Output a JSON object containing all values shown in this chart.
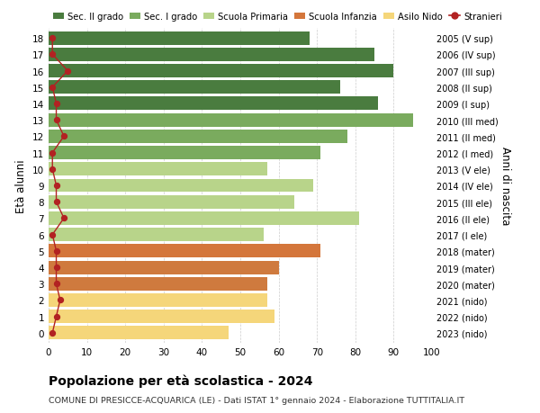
{
  "ages": [
    18,
    17,
    16,
    15,
    14,
    13,
    12,
    11,
    10,
    9,
    8,
    7,
    6,
    5,
    4,
    3,
    2,
    1,
    0
  ],
  "right_labels": [
    "2005 (V sup)",
    "2006 (IV sup)",
    "2007 (III sup)",
    "2008 (II sup)",
    "2009 (I sup)",
    "2010 (III med)",
    "2011 (II med)",
    "2012 (I med)",
    "2013 (V ele)",
    "2014 (IV ele)",
    "2015 (III ele)",
    "2016 (II ele)",
    "2017 (I ele)",
    "2018 (mater)",
    "2019 (mater)",
    "2020 (mater)",
    "2021 (nido)",
    "2022 (nido)",
    "2023 (nido)"
  ],
  "bar_values": [
    68,
    85,
    90,
    76,
    86,
    95,
    78,
    71,
    57,
    69,
    64,
    81,
    56,
    71,
    60,
    57,
    57,
    59,
    47
  ],
  "bar_colors": [
    "#4a7c3f",
    "#4a7c3f",
    "#4a7c3f",
    "#4a7c3f",
    "#4a7c3f",
    "#7aab5e",
    "#7aab5e",
    "#7aab5e",
    "#b8d48a",
    "#b8d48a",
    "#b8d48a",
    "#b8d48a",
    "#b8d48a",
    "#d4763b",
    "#cf7a3e",
    "#cf7a3e",
    "#f5d67a",
    "#f5d67a",
    "#f5d67a"
  ],
  "stranieri_values": [
    1,
    1,
    5,
    1,
    2,
    2,
    4,
    1,
    1,
    2,
    2,
    4,
    1,
    2,
    2,
    2,
    3,
    2,
    1
  ],
  "legend_labels": [
    "Sec. II grado",
    "Sec. I grado",
    "Scuola Primaria",
    "Scuola Infanzia",
    "Asilo Nido",
    "Stranieri"
  ],
  "legend_colors": [
    "#4a7c3f",
    "#7aab5e",
    "#b8d48a",
    "#d4763b",
    "#f5d67a",
    "#b22222"
  ],
  "title": "Popolazione per età scolastica - 2024",
  "subtitle": "COMUNE DI PRESICCE-ACQUARICA (LE) - Dati ISTAT 1° gennaio 2024 - Elaborazione TUTTITALIA.IT",
  "ylabel_left": "Età alunni",
  "ylabel_right": "Anni di nascita",
  "xlim": [
    0,
    100
  ],
  "xticks": [
    0,
    10,
    20,
    30,
    40,
    50,
    60,
    70,
    80,
    90,
    100
  ],
  "background_color": "#ffffff",
  "bar_height": 0.82
}
